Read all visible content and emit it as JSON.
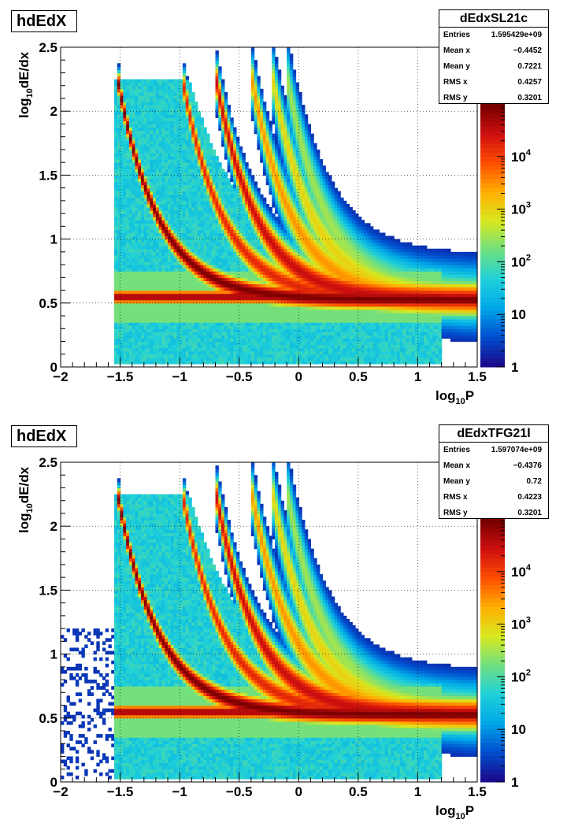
{
  "chart_data": [
    {
      "type": "heatmap",
      "title": "hdEdX",
      "xlabel": "log10P",
      "ylabel": "log10dE/dx",
      "xlim": [
        -2,
        1.5
      ],
      "ylim": [
        0,
        2.5
      ],
      "x_ticks": [
        "−2",
        "−1.5",
        "−1",
        "−0.5",
        "0",
        "0.5",
        "1",
        "1.5"
      ],
      "y_ticks": [
        "0",
        "0.5",
        "1",
        "1.5",
        "2",
        "2.5"
      ],
      "color_scale": "log",
      "z_ticks": [
        "1",
        "10",
        "10^2",
        "10^3",
        "10^4"
      ],
      "grid": true,
      "stats": {
        "name": "dEdxSL21c",
        "rows": [
          {
            "label": "Entries",
            "value": "1.595429e+09"
          },
          {
            "label": "Mean x",
            "value": "−0.4452"
          },
          {
            "label": "Mean y",
            "value": "0.7221"
          },
          {
            "label": "RMS x",
            "value": "0.4257"
          },
          {
            "label": "RMS y",
            "value": "0.3201"
          }
        ]
      }
    },
    {
      "type": "heatmap",
      "title": "hdEdX",
      "xlabel": "log10P",
      "ylabel": "log10dE/dx",
      "xlim": [
        -2,
        1.5
      ],
      "ylim": [
        0,
        2.5
      ],
      "x_ticks": [
        "−2",
        "−1.5",
        "−1",
        "−0.5",
        "0",
        "0.5",
        "1",
        "1.5"
      ],
      "y_ticks": [
        "0",
        "0.5",
        "1",
        "1.5",
        "2",
        "2.5"
      ],
      "color_scale": "log",
      "z_ticks": [
        "1",
        "10",
        "10^2",
        "10^3",
        "10^4"
      ],
      "grid": true,
      "stats": {
        "name": "dEdxTFG21l",
        "rows": [
          {
            "label": "Entries",
            "value": "1.597074e+09"
          },
          {
            "label": "Mean x",
            "value": "−0.4376"
          },
          {
            "label": "Mean y",
            "value": "0.72"
          },
          {
            "label": "RMS x",
            "value": "0.4223"
          },
          {
            "label": "RMS y",
            "value": "0.3201"
          }
        ]
      }
    }
  ],
  "colors": {
    "palette": [
      "#1a0a8c",
      "#0050d0",
      "#00a8e8",
      "#20d0d8",
      "#70e080",
      "#d8e820",
      "#ffb000",
      "#ff5000",
      "#d01010",
      "#7a0000"
    ]
  }
}
